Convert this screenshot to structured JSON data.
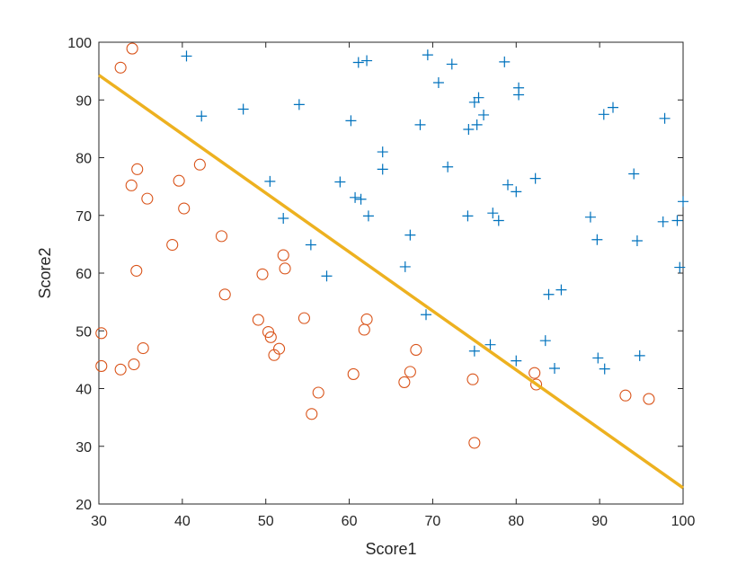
{
  "chart_data": {
    "type": "scatter",
    "xlabel": "Score1",
    "ylabel": "Score2",
    "xlim": [
      30,
      100
    ],
    "ylim": [
      20,
      100
    ],
    "xticks": [
      "30",
      "40",
      "50",
      "60",
      "70",
      "80",
      "90",
      "100"
    ],
    "yticks": [
      "20",
      "30",
      "40",
      "50",
      "60",
      "70",
      "80",
      "90",
      "100"
    ],
    "grid": false,
    "legend": "none",
    "series": [
      {
        "marker": "plus",
        "color": "#0072BD",
        "points": [
          [
            40.5,
            97.6
          ],
          [
            61.1,
            96.5
          ],
          [
            62.1,
            96.8
          ],
          [
            69.4,
            97.8
          ],
          [
            72.3,
            96.2
          ],
          [
            78.6,
            96.6
          ],
          [
            70.7,
            93.0
          ],
          [
            80.3,
            92.1
          ],
          [
            80.3,
            90.9
          ],
          [
            75.0,
            89.6
          ],
          [
            75.5,
            90.4
          ],
          [
            76.1,
            87.4
          ],
          [
            90.5,
            87.5
          ],
          [
            91.6,
            88.7
          ],
          [
            97.8,
            86.8
          ],
          [
            42.3,
            87.2
          ],
          [
            47.3,
            88.4
          ],
          [
            54.0,
            89.2
          ],
          [
            60.2,
            86.4
          ],
          [
            68.5,
            85.7
          ],
          [
            74.3,
            84.9
          ],
          [
            75.3,
            85.7
          ],
          [
            64.0,
            81.0
          ],
          [
            64.0,
            78.0
          ],
          [
            71.8,
            78.4
          ],
          [
            94.1,
            77.2
          ],
          [
            50.5,
            75.9
          ],
          [
            58.9,
            75.8
          ],
          [
            79.0,
            75.3
          ],
          [
            80.0,
            74.1
          ],
          [
            82.3,
            76.4
          ],
          [
            60.7,
            73.1
          ],
          [
            61.4,
            72.8
          ],
          [
            100.0,
            72.4
          ],
          [
            52.1,
            69.5
          ],
          [
            62.3,
            69.9
          ],
          [
            74.2,
            69.9
          ],
          [
            77.2,
            70.4
          ],
          [
            77.9,
            69.1
          ],
          [
            88.9,
            69.7
          ],
          [
            97.6,
            68.9
          ],
          [
            99.3,
            69.1
          ],
          [
            67.3,
            66.6
          ],
          [
            89.7,
            65.8
          ],
          [
            94.5,
            65.6
          ],
          [
            55.4,
            64.9
          ],
          [
            66.7,
            61.1
          ],
          [
            99.6,
            61.0
          ],
          [
            57.3,
            59.5
          ],
          [
            83.9,
            56.3
          ],
          [
            85.4,
            57.1
          ],
          [
            69.2,
            52.8
          ],
          [
            76.9,
            47.6
          ],
          [
            75.0,
            46.5
          ],
          [
            83.5,
            48.3
          ],
          [
            80.0,
            44.8
          ],
          [
            89.8,
            45.3
          ],
          [
            94.8,
            45.7
          ],
          [
            84.6,
            43.5
          ],
          [
            90.6,
            43.4
          ]
        ]
      },
      {
        "marker": "circle",
        "color": "#D95319",
        "points": [
          [
            34.0,
            98.9
          ],
          [
            32.6,
            95.6
          ],
          [
            34.6,
            78.0
          ],
          [
            42.1,
            78.8
          ],
          [
            33.9,
            75.2
          ],
          [
            35.8,
            72.9
          ],
          [
            39.6,
            76.0
          ],
          [
            40.2,
            71.2
          ],
          [
            38.8,
            64.9
          ],
          [
            44.7,
            66.4
          ],
          [
            34.5,
            60.4
          ],
          [
            49.6,
            59.8
          ],
          [
            52.1,
            63.1
          ],
          [
            52.3,
            60.8
          ],
          [
            45.1,
            56.3
          ],
          [
            30.3,
            49.6
          ],
          [
            49.1,
            51.9
          ],
          [
            54.6,
            52.2
          ],
          [
            62.1,
            52.0
          ],
          [
            61.8,
            50.2
          ],
          [
            50.3,
            49.8
          ],
          [
            50.6,
            48.9
          ],
          [
            51.6,
            46.9
          ],
          [
            51.0,
            45.8
          ],
          [
            35.3,
            47.0
          ],
          [
            68.0,
            46.7
          ],
          [
            30.3,
            43.9
          ],
          [
            32.6,
            43.3
          ],
          [
            34.2,
            44.2
          ],
          [
            60.5,
            42.5
          ],
          [
            67.3,
            42.9
          ],
          [
            66.6,
            41.1
          ],
          [
            74.8,
            41.6
          ],
          [
            82.2,
            42.7
          ],
          [
            82.4,
            40.7
          ],
          [
            56.3,
            39.3
          ],
          [
            93.1,
            38.8
          ],
          [
            95.9,
            38.2
          ],
          [
            55.5,
            35.6
          ],
          [
            75.0,
            30.6
          ]
        ]
      },
      {
        "marker": "line",
        "color": "#EDB120",
        "points": [
          [
            30,
            94.3
          ],
          [
            100,
            22.8
          ]
        ]
      }
    ]
  }
}
